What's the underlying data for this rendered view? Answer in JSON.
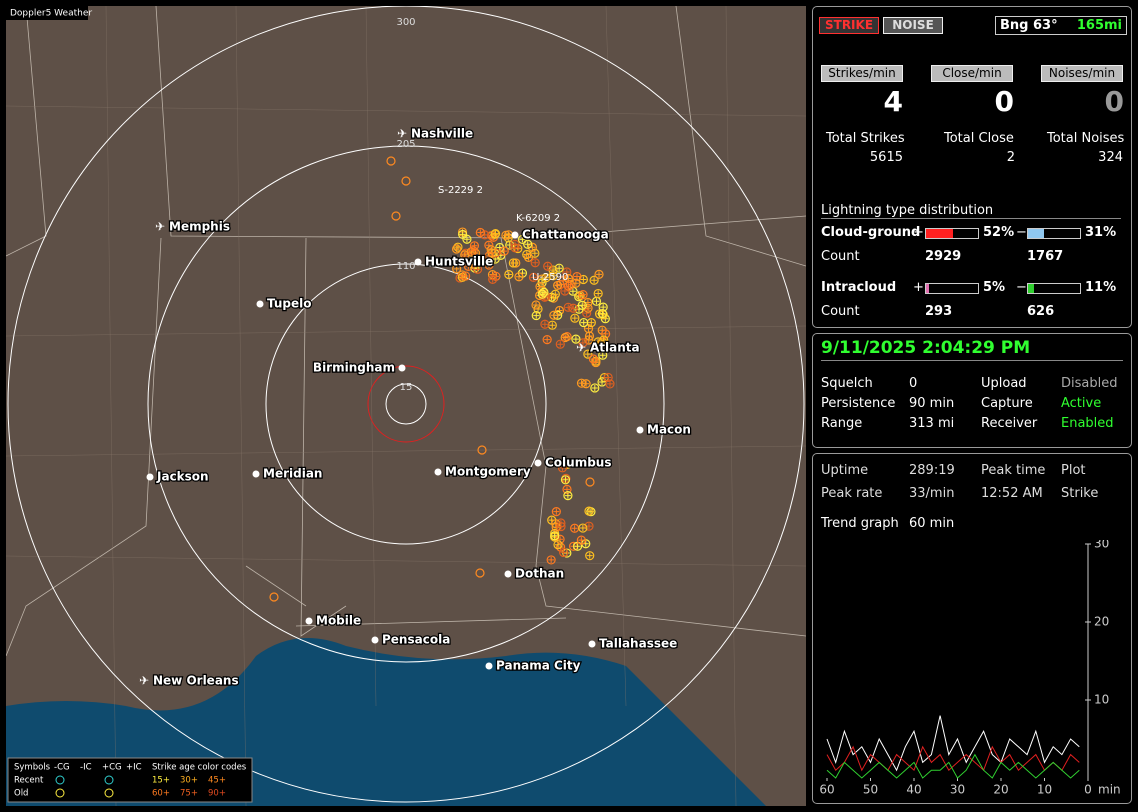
{
  "map": {
    "title": "Doppler5 Weather",
    "ring_labels": [
      "300",
      "205",
      "110",
      "15"
    ],
    "cities": [
      "Nashville",
      "Memphis",
      "Chattanooga",
      "Huntsville",
      "Tupelo",
      "Atlanta",
      "Birmingham",
      "Macon",
      "Columbus",
      "Montgomery",
      "Meridian",
      "Jackson",
      "Dothan",
      "Mobile",
      "Pensacola",
      "Tallahassee",
      "Panama City",
      "New Orleans"
    ],
    "strike_tags": [
      "S-2229 2",
      "K-6209 2",
      "U-2590"
    ],
    "legend": {
      "header": [
        "Symbols",
        "-CG",
        "-IC",
        "+CG",
        "+IC",
        "Strike age color codes"
      ],
      "recent": "Recent",
      "old": "Old",
      "recent_ages": [
        "15+",
        "30+",
        "45+"
      ],
      "old_ages": [
        "60+",
        "75+",
        "90+"
      ]
    }
  },
  "status": {
    "strike": "STRIKE",
    "noise": "NOISE",
    "bearing": "Bng 63°",
    "distance": "165mi"
  },
  "counters": [
    {
      "label": "Strikes/min",
      "value": 4
    },
    {
      "label": "Close/min",
      "value": 0
    },
    {
      "label": "Noises/min",
      "value": 0
    }
  ],
  "totals": [
    {
      "label": "Total Strikes",
      "value": 5615
    },
    {
      "label": "Total Close",
      "value": 2
    },
    {
      "label": "Total Noises",
      "value": 324
    }
  ],
  "distribution": {
    "title": "Lightning type distribution",
    "rows": [
      {
        "label": "Cloud-ground",
        "count_label": "Count",
        "pos_sign": "+",
        "neg_sign": "−",
        "pos": {
          "value": 52,
          "label": "52%"
        },
        "neg": {
          "value": 31,
          "label": "31%"
        },
        "pos_count": 2929,
        "neg_count": 1767
      },
      {
        "label": "Intracloud",
        "count_label": "Count",
        "pos_sign": "+",
        "neg_sign": "−",
        "pos": {
          "value": 5,
          "label": "5%"
        },
        "neg": {
          "value": 11,
          "label": "11%"
        },
        "pos_count": 293,
        "neg_count": 626
      }
    ]
  },
  "clock": "9/11/2025 2:04:29 PM",
  "settings": [
    [
      "Squelch",
      "0",
      "Upload",
      "Disabled"
    ],
    [
      "Persistence",
      "90 min",
      "Capture",
      "Active"
    ],
    [
      "Range",
      "313 mi",
      "Receiver",
      "Enabled"
    ]
  ],
  "stats": [
    [
      "Uptime",
      "289:19",
      "Peak time",
      "Plot"
    ],
    [
      "Peak rate",
      "33/min",
      "12:52 AM",
      "Strike"
    ]
  ],
  "trend": {
    "label": "Trend graph",
    "period": "60 min",
    "x_unit": "min",
    "ylim": [
      0,
      30
    ],
    "yticks": [
      10,
      20,
      30
    ],
    "xlim": [
      60,
      0
    ],
    "xticks": [
      60,
      50,
      40,
      30,
      20,
      10,
      0
    ],
    "x": [
      60,
      58,
      56,
      54,
      52,
      50,
      48,
      46,
      44,
      42,
      40,
      38,
      36,
      34,
      32,
      30,
      28,
      26,
      24,
      22,
      20,
      18,
      16,
      14,
      12,
      10,
      8,
      6,
      4,
      2
    ],
    "series": [
      {
        "color": "#ffffff",
        "values": [
          5,
          2,
          6,
          3,
          4,
          2,
          5,
          3,
          1,
          4,
          6,
          2,
          3,
          8,
          3,
          5,
          2,
          4,
          6,
          3,
          2,
          5,
          4,
          3,
          6,
          2,
          4,
          3,
          5,
          4
        ]
      },
      {
        "color": "#e02020",
        "values": [
          3,
          1,
          2,
          4,
          1,
          3,
          2,
          1,
          3,
          2,
          1,
          4,
          2,
          3,
          1,
          2,
          3,
          2,
          1,
          4,
          2,
          3,
          1,
          2,
          3,
          1,
          2,
          1,
          3,
          2
        ]
      },
      {
        "color": "#30d030",
        "values": [
          1,
          0,
          2,
          1,
          0,
          1,
          2,
          1,
          0,
          1,
          2,
          0,
          1,
          1,
          2,
          0,
          1,
          3,
          1,
          0,
          2,
          1,
          2,
          1,
          0,
          1,
          2,
          1,
          0,
          1
        ]
      }
    ]
  }
}
